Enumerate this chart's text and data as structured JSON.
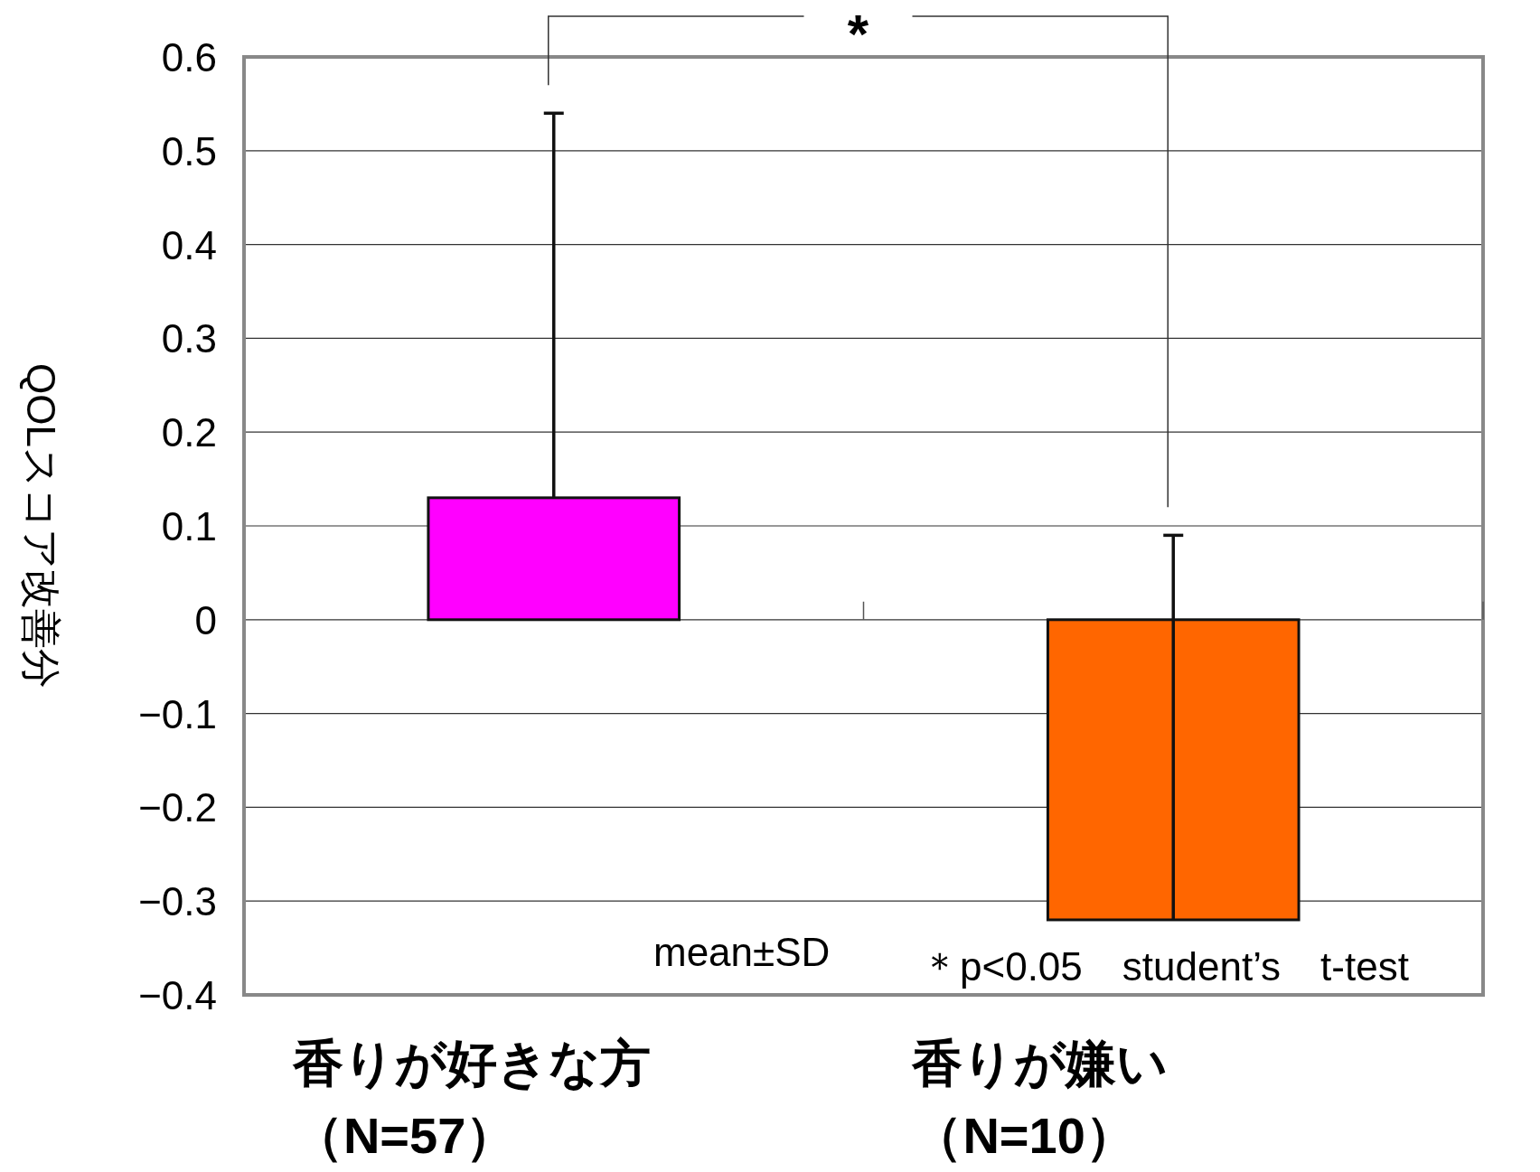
{
  "chart_data": {
    "type": "bar",
    "ylabel": "QOLスコア改善分",
    "categories": [
      "香りが好きな方（N=57）",
      "香りが嫌い（N=10）"
    ],
    "values": [
      0.13,
      -0.32
    ],
    "colors": [
      "#ff00ff",
      "#ff6600"
    ],
    "errors": [
      [
        0.13,
        0.54
      ],
      [
        -0.32,
        0.09
      ]
    ],
    "ylim": [
      -0.4,
      0.6
    ],
    "yticks": [
      {
        "value": -0.4,
        "label": "−0.4"
      },
      {
        "value": -0.3,
        "label": "−0.3"
      },
      {
        "value": -0.2,
        "label": "−0.2"
      },
      {
        "value": -0.1,
        "label": "−0.1"
      },
      0,
      0.1,
      0.2,
      0.3,
      0.4,
      0.5,
      0.6
    ],
    "grid": "y",
    "annotations": [
      "*",
      "mean±SD",
      "＊p<0.05　student’s　t-test"
    ]
  }
}
